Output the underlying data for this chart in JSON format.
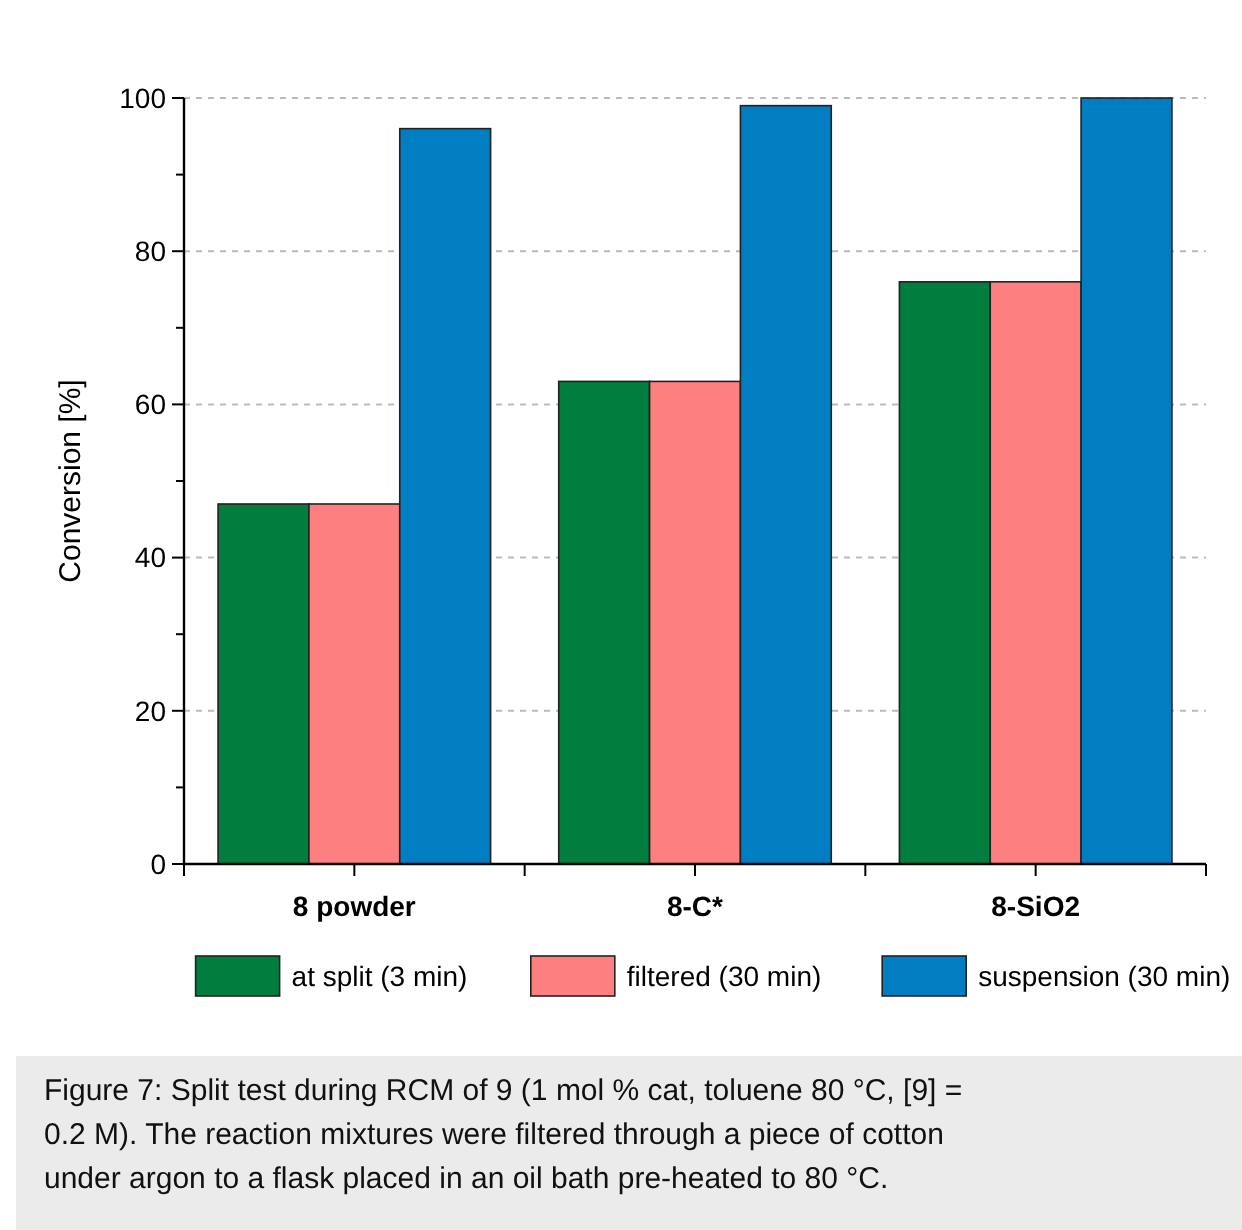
{
  "chart_data": {
    "type": "bar",
    "ylabel": "Conversion [%]",
    "categories": [
      "8 powder",
      "8-C*",
      "8-SiO2"
    ],
    "series": [
      {
        "name": "at split (3 min)",
        "color": "#017d3e",
        "values": [
          47,
          63,
          76
        ]
      },
      {
        "name": "filtered (30 min)",
        "color": "#fe7f80",
        "values": [
          47,
          63,
          76
        ]
      },
      {
        "name": "suspension (30 min)",
        "color": "#017dc2",
        "values": [
          96,
          99,
          100
        ]
      }
    ],
    "ylim": [
      0,
      100
    ],
    "yticks": [
      0,
      {
        "value": 10,
        "label": null
      },
      20,
      {
        "value": 30,
        "label": null
      },
      40,
      {
        "value": 50,
        "label": null
      },
      60,
      {
        "value": 70,
        "label": null
      },
      80,
      {
        "value": 90,
        "label": null
      },
      100
    ],
    "grid": "y",
    "legend": "bottom",
    "annotations": [
      "Figure 7: Split test during RCM of 9 (1 mol % cat, toluene 80 °C, [9] = 0.2 M). The reaction mixtures were filtered through a piece of cotton under argon to a flask placed in an oil bath pre-heated to 80 °C."
    ]
  }
}
